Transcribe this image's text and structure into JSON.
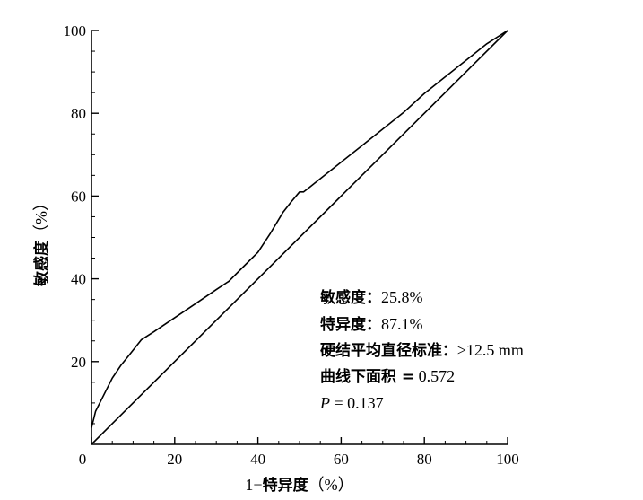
{
  "chart_data": {
    "type": "line",
    "xlabel_prefix": "1−",
    "xlabel_cjk": "特异度",
    "xlabel_unit": "（%）",
    "ylabel_cjk": "敏感度",
    "ylabel_unit": "（%）",
    "xlim": [
      0,
      100
    ],
    "ylim": [
      0,
      100
    ],
    "x_ticks": [
      0,
      20,
      40,
      60,
      80,
      100
    ],
    "y_ticks": [
      20,
      40,
      60,
      80,
      100
    ],
    "grid": false,
    "series": [
      {
        "x": [
          0,
          1,
          3,
          5,
          7,
          9,
          12,
          15,
          20,
          25,
          30,
          33,
          36,
          40,
          43,
          46,
          48,
          50,
          51,
          52,
          55,
          60,
          65,
          70,
          75,
          80,
          85,
          90,
          95,
          100
        ],
        "y": [
          4,
          8,
          12,
          16,
          19,
          21.5,
          25.3,
          27.2,
          30.6,
          34,
          37.4,
          39.4,
          42.4,
          46.4,
          51,
          56,
          58.6,
          61,
          61,
          61.8,
          64.2,
          68.2,
          72.2,
          76.2,
          80.2,
          84.8,
          88.8,
          92.8,
          96.8,
          100
        ]
      },
      {
        "x": [
          0,
          100
        ],
        "y": [
          0,
          100
        ]
      }
    ],
    "annotations": {
      "sensitivity_label": "敏感度：",
      "sensitivity_value": "25.8%",
      "specificity_label": "特异度：",
      "specificity_value": "87.1%",
      "criterion_label": "硬结平均直径标准：",
      "criterion_value": "≥12.5 mm",
      "auc_label": "曲线下面积 =",
      "auc_value": " 0.572",
      "p_letter": "P",
      "p_rest": " = 0.137"
    }
  }
}
